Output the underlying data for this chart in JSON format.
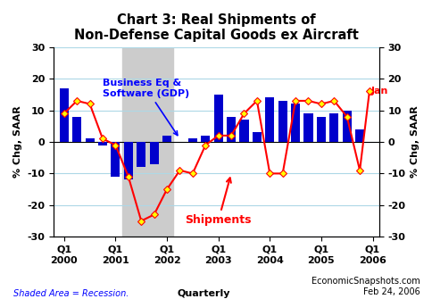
{
  "title": "Chart 3: Real Shipments of\nNon-Defense Capital Goods ex Aircraft",
  "ylabel_left": "% Chg, SAAR",
  "ylabel_right": "% Chg, SAAR",
  "ylim": [
    -30,
    30
  ],
  "yticks": [
    -30,
    -20,
    -10,
    0,
    10,
    20,
    30
  ],
  "bar_color": "#0000CC",
  "bar_width": 0.7,
  "recession_start_idx": 5,
  "recession_end_idx": 9,
  "footnote_left": "Shaded Area = Recession.",
  "footnote_center": "Quarterly",
  "footnote_right": "EconomicSnapshots.com\nFeb 24, 2006",
  "label_gdp": "Business Eq &\nSoftware (GDP)",
  "label_shipments": "Shipments",
  "label_jan": "Jan",
  "gdp_bars": [
    17,
    8,
    1,
    -1,
    -11,
    -12,
    -8,
    -7,
    2,
    0,
    1,
    2,
    15,
    8,
    7,
    3,
    14,
    13,
    12,
    9,
    8,
    9,
    10,
    4
  ],
  "ship_vals": [
    9,
    13,
    12,
    1,
    -1,
    -11,
    -25,
    -23,
    -15,
    -9,
    -10,
    -1,
    2,
    2,
    9,
    13,
    -10,
    -10,
    13,
    13,
    12,
    13,
    8,
    -9,
    16
  ],
  "ship_x": [
    0,
    1,
    2,
    3,
    4,
    5,
    6,
    7,
    8,
    9,
    10,
    11,
    12,
    13,
    14,
    15,
    16,
    17,
    18,
    19,
    20,
    21,
    22,
    23,
    23.75
  ],
  "grid_color": "#ADD8E6",
  "recession_color": "#CCCCCC",
  "xtick_positions": [
    0,
    4,
    8,
    12,
    16,
    20,
    24
  ],
  "xtick_labels": [
    "Q1\n2000",
    "Q1\n2001",
    "Q1\n2002",
    "Q1\n2003",
    "Q1\n2004",
    "Q1\n2005",
    "Q1\n2006"
  ]
}
